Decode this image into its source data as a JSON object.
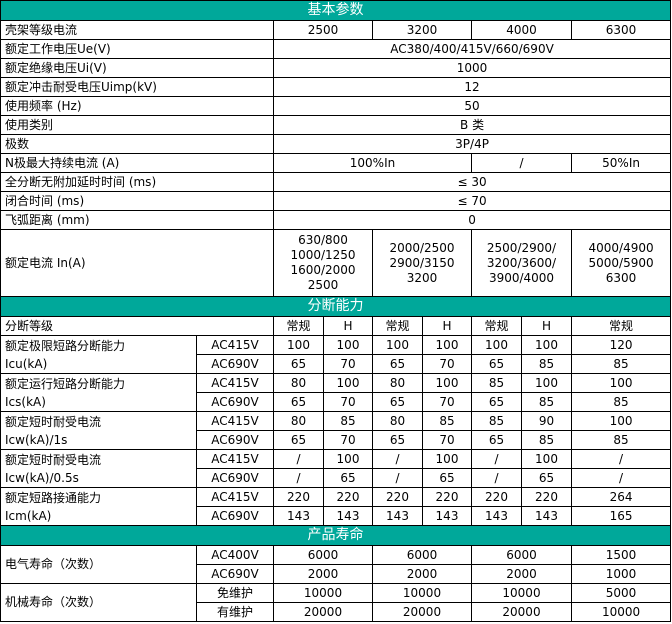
{
  "basic": {
    "title": "基本参数",
    "rows": [
      {
        "label": "壳架等级电流",
        "values": [
          "2500",
          "3200",
          "4000",
          "6300"
        ]
      },
      {
        "label": "额定工作电压Ue(V)",
        "values": [
          "AC380/400/415V/660/690V"
        ]
      },
      {
        "label": "额定绝缘电压Ui(V)",
        "values": [
          "1000"
        ]
      },
      {
        "label": "额定冲击耐受电压Uimp(kV)",
        "values": [
          "12"
        ]
      },
      {
        "label": "使用频率 (Hz)",
        "values": [
          "50"
        ]
      },
      {
        "label": "使用类别",
        "values": [
          "B 类"
        ]
      },
      {
        "label": "极数",
        "values": [
          "3P/4P"
        ]
      },
      {
        "label": "N极最大持续电流 (A)",
        "values": [
          "100%In",
          "/",
          "50%In"
        ]
      },
      {
        "label": "全分断无附加延时时间 (ms)",
        "values": [
          "≤ 30"
        ]
      },
      {
        "label": "闭合时间 (ms)",
        "values": [
          "≤ 70"
        ]
      },
      {
        "label": "飞弧距离 (mm)",
        "values": [
          "0"
        ]
      },
      {
        "label": "额定电流 In(A)",
        "values": [
          "630/800\n1000/1250\n1600/2000\n2500",
          "2000/2500\n2900/3150\n3200",
          "2500/2900/\n3200/3600/\n3900/4000",
          "4000/4900\n5000/5900\n6300"
        ]
      }
    ]
  },
  "breaking": {
    "title": "分断能力",
    "grade_label": "分断等级",
    "grades": [
      "常规",
      "H",
      "常规",
      "H",
      "常规",
      "H",
      "常规"
    ],
    "groups": [
      {
        "label": [
          "额定极限短路分断能力",
          "Icu(kA)"
        ],
        "rows": [
          {
            "voltage": "AC415V",
            "values": [
              "100",
              "100",
              "100",
              "100",
              "100",
              "100",
              "120"
            ]
          },
          {
            "voltage": "AC690V",
            "values": [
              "65",
              "70",
              "65",
              "70",
              "65",
              "85",
              "85"
            ]
          }
        ]
      },
      {
        "label": [
          "额定运行短路分断能力",
          "Ics(kA)"
        ],
        "rows": [
          {
            "voltage": "AC415V",
            "values": [
              "80",
              "100",
              "80",
              "100",
              "85",
              "100",
              "100"
            ]
          },
          {
            "voltage": "AC690V",
            "values": [
              "65",
              "70",
              "65",
              "70",
              "65",
              "85",
              "85"
            ]
          }
        ]
      },
      {
        "label": [
          "额定短时耐受电流",
          "Icw(kA)/1s"
        ],
        "rows": [
          {
            "voltage": "AC415V",
            "values": [
              "80",
              "85",
              "80",
              "85",
              "85",
              "90",
              "100"
            ]
          },
          {
            "voltage": "AC690V",
            "values": [
              "65",
              "70",
              "65",
              "70",
              "65",
              "85",
              "85"
            ]
          }
        ]
      },
      {
        "label": [
          "额定短时耐受电流",
          "Icw(kA)/0.5s"
        ],
        "rows": [
          {
            "voltage": "AC415V",
            "values": [
              "/",
              "100",
              "/",
              "100",
              "/",
              "100",
              "/"
            ]
          },
          {
            "voltage": "AC690V",
            "values": [
              "/",
              "65",
              "/",
              "65",
              "/",
              "65",
              "/"
            ]
          }
        ]
      },
      {
        "label": [
          "额定短路接通能力",
          "Icm(kA)"
        ],
        "rows": [
          {
            "voltage": "AC415V",
            "values": [
              "220",
              "220",
              "220",
              "220",
              "220",
              "220",
              "264"
            ]
          },
          {
            "voltage": "AC690V",
            "values": [
              "143",
              "143",
              "143",
              "143",
              "143",
              "143",
              "165"
            ]
          }
        ]
      }
    ]
  },
  "life": {
    "title": "产品寿命",
    "groups": [
      {
        "label": "电气寿命（次数）",
        "rows": [
          {
            "condition": "AC400V",
            "values": [
              "6000",
              "6000",
              "6000",
              "1500"
            ]
          },
          {
            "condition": "AC690V",
            "values": [
              "2000",
              "2000",
              "2000",
              "1000"
            ]
          }
        ]
      },
      {
        "label": "机械寿命（次数）",
        "rows": [
          {
            "condition": "免维护",
            "values": [
              "10000",
              "10000",
              "10000",
              "5000"
            ]
          },
          {
            "condition": "有维护",
            "values": [
              "20000",
              "20000",
              "20000",
              "10000"
            ]
          }
        ]
      }
    ]
  },
  "colors": {
    "section_header": "#00a89a"
  }
}
